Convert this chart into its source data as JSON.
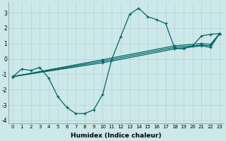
{
  "xlabel": "Humidex (Indice chaleur)",
  "bg_color": "#cce8e8",
  "line_color": "#006666",
  "xlim": [
    -0.5,
    23.5
  ],
  "ylim": [
    -4.2,
    3.7
  ],
  "yticks": [
    -4,
    -3,
    -2,
    -1,
    0,
    1,
    2,
    3
  ],
  "xticks": [
    0,
    1,
    2,
    3,
    4,
    5,
    6,
    7,
    8,
    9,
    10,
    11,
    12,
    13,
    14,
    15,
    16,
    17,
    18,
    19,
    20,
    21,
    22,
    23
  ],
  "series": [
    {
      "x": [
        0,
        1,
        2,
        3,
        4,
        5,
        6,
        7,
        8,
        9,
        10,
        11,
        12,
        13,
        14,
        15,
        16,
        17,
        18,
        19,
        20,
        21,
        22,
        23
      ],
      "y": [
        -1.15,
        -0.65,
        -0.75,
        -0.55,
        -1.25,
        -2.45,
        -3.15,
        -3.55,
        -3.55,
        -3.3,
        -2.3,
        -0.05,
        1.45,
        2.9,
        3.3,
        2.75,
        2.55,
        2.3,
        0.7,
        0.65,
        0.85,
        1.5,
        1.6,
        1.65
      ]
    },
    {
      "x": [
        0,
        10,
        18,
        21,
        22,
        23
      ],
      "y": [
        -1.15,
        -0.25,
        0.65,
        0.85,
        0.75,
        1.65
      ]
    },
    {
      "x": [
        0,
        10,
        18,
        21,
        22,
        23
      ],
      "y": [
        -1.15,
        -0.15,
        0.75,
        0.9,
        0.85,
        1.65
      ]
    },
    {
      "x": [
        0,
        10,
        18,
        21,
        22,
        23
      ],
      "y": [
        -1.15,
        -0.05,
        0.85,
        1.0,
        0.95,
        1.65
      ]
    }
  ]
}
